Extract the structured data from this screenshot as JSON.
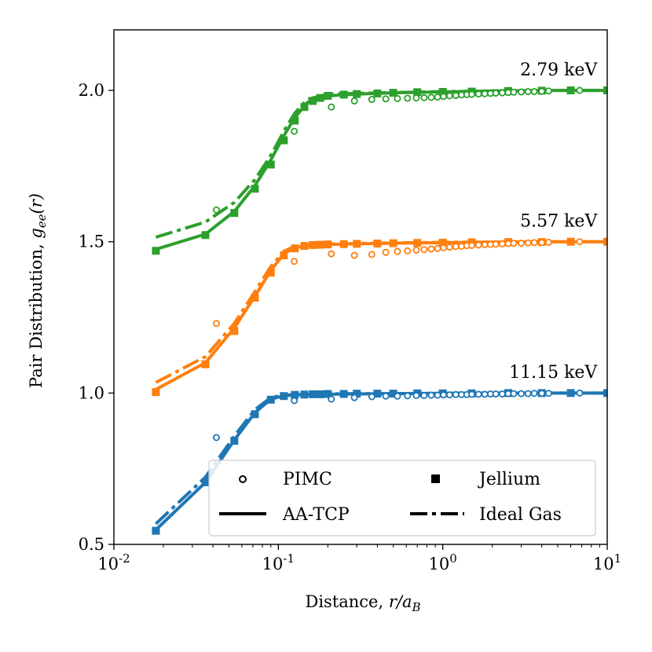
{
  "chart_data": {
    "type": "line",
    "xscale": "log",
    "xlim": [
      0.01,
      10
    ],
    "ylim": [
      0.5,
      2.2
    ],
    "xlabel": "Distance, r/a_B",
    "xlabel_prefix": "Distance, ",
    "xlabel_math": "r/a",
    "xlabel_sub": "B",
    "ylabel": "Pair Distribution, g_ee(r)",
    "ylabel_prefix": "Pair Distribution, ",
    "ylabel_math": "g",
    "ylabel_sub": "ee",
    "ylabel_arg": "(r)",
    "x_ticks": [
      {
        "value": 0.01,
        "base": "10",
        "exp": "-2"
      },
      {
        "value": 0.1,
        "base": "10",
        "exp": "-1"
      },
      {
        "value": 1,
        "base": "10",
        "exp": "0"
      },
      {
        "value": 10,
        "base": "10",
        "exp": "1"
      }
    ],
    "y_ticks": [
      {
        "value": 0.5,
        "label": "0.5"
      },
      {
        "value": 1.0,
        "label": "1.0"
      },
      {
        "value": 1.5,
        "label": "1.5"
      },
      {
        "value": 2.0,
        "label": "2.0"
      }
    ],
    "series": [
      {
        "name": "11.15 keV",
        "color": "#1f77b4",
        "label_anchor": {
          "x": 8.7,
          "y": 1.05
        },
        "pimc": {
          "x": [
            0.042,
            0.125,
            0.21,
            0.29,
            0.37,
            0.45,
            0.53,
            0.61,
            0.69,
            0.77,
            0.85,
            0.93,
            1.01,
            1.1,
            1.2,
            1.3,
            1.4,
            1.5,
            1.65,
            1.8,
            1.95,
            2.1,
            2.3,
            2.5,
            2.7,
            3.0,
            3.3,
            3.6,
            4.0,
            4.4,
            6.8
          ],
          "y": [
            0.853,
            0.975,
            0.98,
            0.985,
            0.988,
            0.99,
            0.99,
            0.991,
            0.992,
            0.992,
            0.993,
            0.993,
            0.994,
            0.994,
            0.995,
            0.995,
            0.995,
            0.996,
            0.996,
            0.996,
            0.997,
            0.997,
            0.997,
            0.998,
            0.998,
            0.998,
            0.998,
            0.999,
            0.999,
            0.999,
            1.0
          ]
        },
        "jellium": {
          "x": [
            0.018,
            0.036,
            0.054,
            0.072,
            0.09,
            0.108,
            0.126,
            0.144,
            0.162,
            0.18,
            0.2,
            0.25,
            0.3,
            0.4,
            0.5,
            0.7,
            1.0,
            1.5,
            2.5,
            4.0,
            6.0,
            10.0
          ],
          "y": [
            0.545,
            0.705,
            0.842,
            0.93,
            0.978,
            0.99,
            0.994,
            0.995,
            0.996,
            0.996,
            0.997,
            0.997,
            0.998,
            0.998,
            0.998,
            0.999,
            0.999,
            0.999,
            1.0,
            1.0,
            1.0,
            1.0
          ]
        },
        "aatcp": {
          "x": [
            0.018,
            0.036,
            0.054,
            0.072,
            0.09,
            0.108,
            0.126,
            0.15,
            0.2,
            0.3,
            0.5,
            1.0,
            2.0,
            5.0,
            10.0
          ],
          "y": [
            0.548,
            0.705,
            0.845,
            0.935,
            0.98,
            0.991,
            0.994,
            0.995,
            0.996,
            0.997,
            0.998,
            0.999,
            1.0,
            1.0,
            1.0
          ]
        },
        "ideal": {
          "x": [
            0.018,
            0.036,
            0.054,
            0.072,
            0.09,
            0.108,
            0.126,
            0.15,
            0.2,
            0.3,
            0.5,
            1.0,
            2.0,
            5.0,
            10.0
          ],
          "y": [
            0.568,
            0.722,
            0.858,
            0.945,
            0.985,
            0.993,
            0.995,
            0.996,
            0.997,
            0.998,
            0.998,
            0.999,
            1.0,
            1.0,
            1.0
          ]
        }
      },
      {
        "name": "5.57 keV",
        "color": "#ff7f0e",
        "label_anchor": {
          "x": 8.7,
          "y": 1.55
        },
        "pimc": {
          "x": [
            0.042,
            0.125,
            0.21,
            0.29,
            0.37,
            0.45,
            0.53,
            0.61,
            0.69,
            0.77,
            0.85,
            0.93,
            1.01,
            1.1,
            1.2,
            1.3,
            1.4,
            1.5,
            1.65,
            1.8,
            1.95,
            2.1,
            2.3,
            2.5,
            2.7,
            3.0,
            3.3,
            3.6,
            4.0,
            4.4,
            6.8
          ],
          "y": [
            1.23,
            1.435,
            1.46,
            1.455,
            1.458,
            1.465,
            1.468,
            1.47,
            1.472,
            1.474,
            1.476,
            1.478,
            1.48,
            1.482,
            1.484,
            1.485,
            1.487,
            1.488,
            1.489,
            1.49,
            1.491,
            1.492,
            1.493,
            1.494,
            1.495,
            1.495,
            1.496,
            1.497,
            1.497,
            1.498,
            1.5
          ]
        },
        "jellium": {
          "x": [
            0.018,
            0.036,
            0.054,
            0.072,
            0.09,
            0.108,
            0.126,
            0.144,
            0.162,
            0.18,
            0.2,
            0.25,
            0.3,
            0.4,
            0.5,
            0.7,
            1.0,
            1.5,
            2.5,
            4.0,
            6.0,
            10.0
          ],
          "y": [
            1.003,
            1.095,
            1.205,
            1.315,
            1.398,
            1.455,
            1.478,
            1.486,
            1.489,
            1.49,
            1.491,
            1.492,
            1.493,
            1.494,
            1.495,
            1.496,
            1.497,
            1.498,
            1.499,
            1.499,
            1.5,
            1.5
          ]
        },
        "aatcp": {
          "x": [
            0.018,
            0.036,
            0.054,
            0.072,
            0.09,
            0.108,
            0.126,
            0.15,
            0.2,
            0.3,
            0.5,
            1.0,
            2.0,
            5.0,
            10.0
          ],
          "y": [
            1.012,
            1.1,
            1.215,
            1.32,
            1.405,
            1.46,
            1.48,
            1.488,
            1.491,
            1.493,
            1.495,
            1.497,
            1.499,
            1.5,
            1.5
          ]
        },
        "ideal": {
          "x": [
            0.018,
            0.036,
            0.054,
            0.072,
            0.09,
            0.108,
            0.126,
            0.15,
            0.2,
            0.3,
            0.5,
            1.0,
            2.0,
            5.0,
            10.0
          ],
          "y": [
            1.035,
            1.12,
            1.23,
            1.335,
            1.418,
            1.468,
            1.485,
            1.49,
            1.492,
            1.494,
            1.496,
            1.498,
            1.499,
            1.5,
            1.5
          ]
        }
      },
      {
        "name": "2.79 keV",
        "color": "#2ca02c",
        "label_anchor": {
          "x": 8.7,
          "y": 2.05
        },
        "pimc": {
          "x": [
            0.042,
            0.125,
            0.21,
            0.29,
            0.37,
            0.45,
            0.53,
            0.61,
            0.69,
            0.77,
            0.85,
            0.93,
            1.01,
            1.1,
            1.2,
            1.3,
            1.4,
            1.5,
            1.65,
            1.8,
            1.95,
            2.1,
            2.3,
            2.5,
            2.7,
            3.0,
            3.3,
            3.6,
            4.0,
            4.4,
            6.8
          ],
          "y": [
            1.605,
            1.865,
            1.945,
            1.965,
            1.97,
            1.972,
            1.973,
            1.974,
            1.975,
            1.976,
            1.977,
            1.978,
            1.98,
            1.982,
            1.983,
            1.985,
            1.986,
            1.987,
            1.988,
            1.989,
            1.99,
            1.991,
            1.992,
            1.993,
            1.994,
            1.995,
            1.996,
            1.996,
            1.997,
            1.998,
            2.0
          ]
        },
        "jellium": {
          "x": [
            0.018,
            0.036,
            0.054,
            0.072,
            0.09,
            0.108,
            0.126,
            0.144,
            0.162,
            0.18,
            0.2,
            0.25,
            0.3,
            0.4,
            0.5,
            0.7,
            1.0,
            1.5,
            2.5,
            4.0,
            6.0,
            10.0
          ],
          "y": [
            1.47,
            1.522,
            1.595,
            1.675,
            1.755,
            1.835,
            1.9,
            1.945,
            1.965,
            1.975,
            1.982,
            1.986,
            1.988,
            1.99,
            1.992,
            1.994,
            1.995,
            1.996,
            1.998,
            1.999,
            2.0,
            2.0
          ]
        },
        "aatcp": {
          "x": [
            0.018,
            0.036,
            0.054,
            0.072,
            0.09,
            0.108,
            0.126,
            0.15,
            0.2,
            0.3,
            0.5,
            1.0,
            2.0,
            5.0,
            10.0
          ],
          "y": [
            1.475,
            1.525,
            1.6,
            1.685,
            1.77,
            1.85,
            1.91,
            1.96,
            1.982,
            1.988,
            1.992,
            1.995,
            1.998,
            2.0,
            2.0
          ]
        },
        "ideal": {
          "x": [
            0.018,
            0.036,
            0.054,
            0.072,
            0.09,
            0.108,
            0.126,
            0.15,
            0.2,
            0.3,
            0.5,
            1.0,
            2.0,
            5.0,
            10.0
          ],
          "y": [
            1.515,
            1.565,
            1.63,
            1.705,
            1.785,
            1.865,
            1.925,
            1.97,
            1.988,
            1.99,
            1.993,
            1.996,
            1.998,
            2.0,
            2.0
          ]
        }
      }
    ],
    "legend": {
      "position": "lower-right",
      "entries": [
        {
          "key": "pimc",
          "label": "PIMC",
          "marker": "open-circle"
        },
        {
          "key": "jellium",
          "label": "Jellium",
          "marker": "filled-square"
        },
        {
          "key": "aatcp",
          "label": "AA-TCP",
          "marker": "solid-line"
        },
        {
          "key": "ideal",
          "label": "Ideal Gas",
          "marker": "dash-dot-line"
        }
      ]
    }
  }
}
